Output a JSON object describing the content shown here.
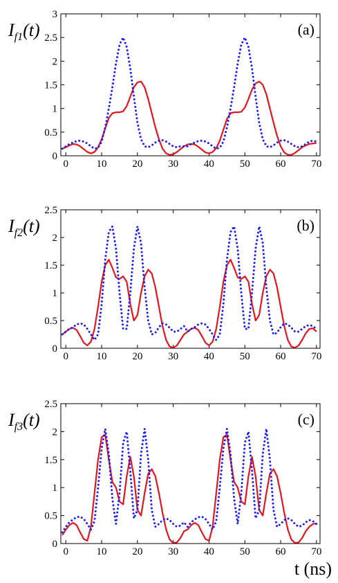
{
  "chart_data": [
    {
      "type": "line",
      "ylabel": [
        "I",
        "f1",
        "(t)"
      ],
      "annotation": "(a)",
      "x": [
        -1,
        0,
        1,
        2,
        3,
        4,
        5,
        6,
        7,
        8,
        9,
        10,
        11,
        12,
        13,
        14,
        15,
        16,
        17,
        18,
        19,
        20,
        21,
        22,
        23,
        24,
        25,
        26,
        27,
        28,
        29,
        30,
        31,
        32,
        33,
        34,
        35,
        36,
        37,
        38,
        39,
        40,
        41,
        42,
        43,
        44,
        45,
        46,
        47,
        48,
        49,
        50,
        51,
        52,
        53,
        54,
        55,
        56,
        57,
        58,
        59,
        60,
        61,
        62,
        63,
        64,
        65,
        66,
        67,
        68,
        69,
        70
      ],
      "xlim": [
        -1.4,
        71
      ],
      "xticks": [
        0,
        10,
        20,
        30,
        40,
        50,
        60,
        70
      ],
      "ylim": [
        0,
        3
      ],
      "yticks": [
        0,
        0.5,
        1,
        1.5,
        2,
        2.5,
        3
      ],
      "series": [
        {
          "color": "#e8141c",
          "style": "solid",
          "values": [
            0.15,
            0.18,
            0.22,
            0.25,
            0.24,
            0.2,
            0.14,
            0.08,
            0.05,
            0.08,
            0.18,
            0.35,
            0.58,
            0.8,
            0.9,
            0.92,
            0.92,
            0.94,
            1.05,
            1.25,
            1.45,
            1.55,
            1.57,
            1.45,
            1.2,
            0.9,
            0.6,
            0.35,
            0.15,
            0.05,
            0.02,
            0.03,
            0.08,
            0.14,
            0.2,
            0.24,
            0.25,
            0.24,
            0.19,
            0.13,
            0.07,
            0.05,
            0.08,
            0.16,
            0.32,
            0.55,
            0.78,
            0.9,
            0.92,
            0.92,
            0.93,
            1.02,
            1.2,
            1.4,
            1.53,
            1.57,
            1.5,
            1.3,
            1.0,
            0.7,
            0.42,
            0.2,
            0.07,
            0.02,
            0.02,
            0.06,
            0.12,
            0.18,
            0.22,
            0.25,
            0.26,
            0.27
          ]
        },
        {
          "color": "#1a1aff",
          "style": "dotted",
          "values": [
            0.15,
            0.2,
            0.25,
            0.28,
            0.31,
            0.32,
            0.3,
            0.26,
            0.2,
            0.15,
            0.17,
            0.3,
            0.6,
            1.0,
            1.45,
            1.95,
            2.35,
            2.5,
            2.3,
            1.85,
            1.25,
            0.7,
            0.35,
            0.2,
            0.18,
            0.22,
            0.28,
            0.32,
            0.33,
            0.3,
            0.25,
            0.2,
            0.18,
            0.2,
            0.2,
            0.2,
            0.25,
            0.28,
            0.31,
            0.32,
            0.3,
            0.26,
            0.2,
            0.15,
            0.17,
            0.3,
            0.6,
            1.0,
            1.45,
            1.95,
            2.35,
            2.5,
            2.3,
            1.85,
            1.25,
            0.7,
            0.35,
            0.2,
            0.18,
            0.22,
            0.28,
            0.32,
            0.33,
            0.3,
            0.25,
            0.2,
            0.18,
            0.2,
            0.25,
            0.3,
            0.32,
            0.3
          ]
        }
      ]
    },
    {
      "type": "line",
      "ylabel": [
        "I",
        "f2",
        "(t)"
      ],
      "annotation": "(b)",
      "x": [
        -1,
        0,
        1,
        2,
        3,
        4,
        5,
        6,
        7,
        8,
        9,
        10,
        11,
        12,
        13,
        14,
        15,
        16,
        17,
        18,
        19,
        20,
        21,
        22,
        23,
        24,
        25,
        26,
        27,
        28,
        29,
        30,
        31,
        32,
        33,
        34,
        35,
        36,
        37,
        38,
        39,
        40,
        41,
        42,
        43,
        44,
        45,
        46,
        47,
        48,
        49,
        50,
        51,
        52,
        53,
        54,
        55,
        56,
        57,
        58,
        59,
        60,
        61,
        62,
        63,
        64,
        65,
        66,
        67,
        68,
        69,
        70
      ],
      "xlim": [
        -1.4,
        71
      ],
      "xticks": [
        0,
        10,
        20,
        30,
        40,
        50,
        60,
        70
      ],
      "ylim": [
        0,
        2.5
      ],
      "yticks": [
        0,
        0.5,
        1,
        1.5,
        2,
        2.5
      ],
      "series": [
        {
          "color": "#e8141c",
          "style": "solid",
          "values": [
            0.25,
            0.3,
            0.35,
            0.37,
            0.33,
            0.22,
            0.1,
            0.05,
            0.12,
            0.35,
            0.75,
            1.2,
            1.5,
            1.6,
            1.45,
            1.28,
            1.25,
            1.3,
            1.2,
            0.8,
            0.5,
            0.6,
            1.0,
            1.3,
            1.42,
            1.35,
            1.1,
            0.75,
            0.4,
            0.15,
            0.03,
            0.01,
            0.05,
            0.15,
            0.25,
            0.3,
            0.35,
            0.37,
            0.33,
            0.22,
            0.1,
            0.05,
            0.12,
            0.35,
            0.75,
            1.2,
            1.5,
            1.6,
            1.45,
            1.28,
            1.25,
            1.3,
            1.2,
            0.8,
            0.5,
            0.6,
            1.0,
            1.3,
            1.42,
            1.35,
            1.1,
            0.75,
            0.4,
            0.15,
            0.03,
            0.01,
            0.05,
            0.15,
            0.27,
            0.35,
            0.36,
            0.3
          ]
        },
        {
          "color": "#1a1aff",
          "style": "dotted",
          "values": [
            0.25,
            0.3,
            0.35,
            0.38,
            0.43,
            0.45,
            0.43,
            0.35,
            0.25,
            0.15,
            0.25,
            0.8,
            1.6,
            2.1,
            2.2,
            1.8,
            1.0,
            0.35,
            0.35,
            1.0,
            1.8,
            2.2,
            1.9,
            1.1,
            0.5,
            0.25,
            0.28,
            0.38,
            0.45,
            0.43,
            0.37,
            0.3,
            0.3,
            0.35,
            0.4,
            0.3,
            0.35,
            0.38,
            0.43,
            0.45,
            0.43,
            0.35,
            0.25,
            0.15,
            0.25,
            0.8,
            1.6,
            2.1,
            2.2,
            1.8,
            1.0,
            0.35,
            0.35,
            1.0,
            1.8,
            2.2,
            1.9,
            1.1,
            0.5,
            0.25,
            0.28,
            0.38,
            0.45,
            0.43,
            0.37,
            0.3,
            0.3,
            0.35,
            0.4,
            0.42,
            0.4,
            0.35
          ]
        }
      ]
    },
    {
      "type": "line",
      "ylabel": [
        "I",
        "f3",
        "(t)"
      ],
      "annotation": "(c)",
      "xlabel": "t (ns)",
      "x": [
        -1,
        0,
        1,
        2,
        3,
        4,
        5,
        6,
        7,
        8,
        9,
        10,
        11,
        12,
        13,
        14,
        15,
        16,
        17,
        18,
        19,
        20,
        21,
        22,
        23,
        24,
        25,
        26,
        27,
        28,
        29,
        30,
        31,
        32,
        33,
        34,
        35,
        36,
        37,
        38,
        39,
        40,
        41,
        42,
        43,
        44,
        45,
        46,
        47,
        48,
        49,
        50,
        51,
        52,
        53,
        54,
        55,
        56,
        57,
        58,
        59,
        60,
        61,
        62,
        63,
        64,
        65,
        66,
        67,
        68,
        69,
        70
      ],
      "xlim": [
        -1.4,
        71
      ],
      "xticks": [
        0,
        10,
        20,
        30,
        40,
        50,
        60,
        70
      ],
      "ylim": [
        0,
        2.5
      ],
      "yticks": [
        0,
        0.5,
        1,
        1.5,
        2,
        2.5
      ],
      "series": [
        {
          "color": "#e8141c",
          "style": "solid",
          "values": [
            0.15,
            0.25,
            0.33,
            0.37,
            0.33,
            0.2,
            0.08,
            0.05,
            0.3,
            0.9,
            1.5,
            1.9,
            1.95,
            1.5,
            1.1,
            1.0,
            0.75,
            0.7,
            1.2,
            1.55,
            1.2,
            0.6,
            0.5,
            0.9,
            1.25,
            1.33,
            1.2,
            0.9,
            0.55,
            0.25,
            0.07,
            0.01,
            0.02,
            0.1,
            0.22,
            0.25,
            0.33,
            0.37,
            0.33,
            0.2,
            0.08,
            0.05,
            0.3,
            0.9,
            1.5,
            1.9,
            1.95,
            1.5,
            1.1,
            1.0,
            0.75,
            0.7,
            1.2,
            1.55,
            1.2,
            0.6,
            0.5,
            0.9,
            1.25,
            1.33,
            1.2,
            0.9,
            0.55,
            0.25,
            0.07,
            0.01,
            0.02,
            0.1,
            0.22,
            0.3,
            0.35,
            0.36
          ]
        },
        {
          "color": "#1a1aff",
          "style": "dotted",
          "values": [
            0.2,
            0.3,
            0.38,
            0.43,
            0.47,
            0.48,
            0.44,
            0.35,
            0.25,
            0.4,
            1.0,
            1.7,
            2.05,
            1.6,
            0.8,
            0.35,
            0.9,
            1.8,
            2.0,
            1.3,
            0.45,
            0.6,
            1.6,
            2.05,
            1.5,
            0.6,
            0.3,
            0.35,
            0.42,
            0.45,
            0.42,
            0.35,
            0.3,
            0.32,
            0.38,
            0.3,
            0.38,
            0.43,
            0.47,
            0.48,
            0.44,
            0.35,
            0.25,
            0.4,
            1.0,
            1.7,
            2.05,
            1.6,
            0.8,
            0.35,
            0.9,
            1.8,
            2.0,
            1.3,
            0.45,
            0.6,
            1.6,
            2.05,
            1.5,
            0.6,
            0.3,
            0.35,
            0.42,
            0.45,
            0.42,
            0.35,
            0.3,
            0.32,
            0.38,
            0.42,
            0.4,
            0.35
          ]
        }
      ]
    }
  ]
}
